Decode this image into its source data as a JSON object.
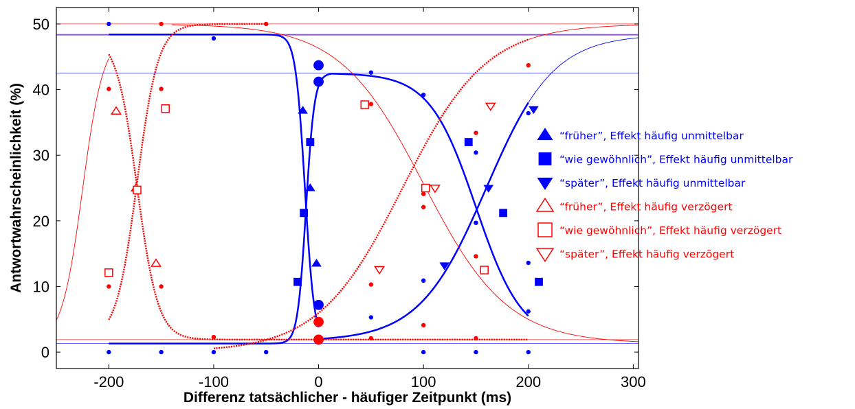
{
  "chart_data": {
    "type": "scatter",
    "title": "",
    "xlabel": "Differenz tatsächlicher - häufiger Zeitpunkt (ms)",
    "ylabel": "Antwortwahrscheinlichkeit (%)",
    "xlim": [
      -250,
      305
    ],
    "ylim": [
      -2.5,
      52.5
    ],
    "xticks": [
      -200,
      -100,
      0,
      100,
      200,
      300
    ],
    "xtick_labels": [
      "-200",
      "-100",
      "0",
      "100",
      "200",
      "300"
    ],
    "yticks": [
      0,
      10,
      20,
      30,
      40,
      50
    ],
    "ytick_labels": [
      "0",
      "10",
      "20",
      "30",
      "40",
      "50"
    ],
    "grid": false,
    "legend_position": "right",
    "colors": {
      "unmittelbar": "#0000ff",
      "verzoegert": "#ff0000"
    },
    "reference_lines": [
      {
        "y": 48.4,
        "color": "#0000ff"
      },
      {
        "y": 42.5,
        "color": "#0000ff"
      },
      {
        "y": 1.3,
        "color": "#0000ff"
      },
      {
        "y": 50.0,
        "color": "#ff0000"
      },
      {
        "y": 48.3,
        "color": "#ff0000"
      },
      {
        "y": 1.9,
        "color": "#ff0000"
      }
    ],
    "curves": [
      {
        "series": "blue_frueher",
        "color": "#0000ff",
        "style": "solid",
        "width": 2.5,
        "low": 1.3,
        "high": 48.4,
        "mid": -13,
        "scale": 4.5,
        "direction": "down",
        "xmin": -200,
        "xmax": 0
      },
      {
        "series": "blue_wie",
        "color": "#0000ff",
        "style": "solid",
        "width": 2.5,
        "low": 1.3,
        "high": 42.5,
        "mid": -12,
        "scale": 4.0,
        "direction": "up",
        "xmin": -200,
        "xmax": 12
      },
      {
        "series": "blue_wie",
        "color": "#0000ff",
        "style": "solid",
        "width": 2.5,
        "low": 1.7,
        "high": 42.5,
        "mid": 150,
        "scale": 22,
        "direction": "down",
        "xmin": 12,
        "xmax": 200
      },
      {
        "series": "blue_spaeter",
        "color": "#0000ff",
        "style": "solid",
        "width": 2.5,
        "low": 1.7,
        "high": 48.4,
        "mid": 160,
        "scale": 32,
        "direction": "up",
        "xmin": 0,
        "xmax": 200
      },
      {
        "series": "blue_spaeter",
        "color": "#0000ff",
        "style": "solid",
        "width": 0.9,
        "low": 1.7,
        "high": 48.4,
        "mid": 160,
        "scale": 32,
        "direction": "up",
        "xmin": 200,
        "xmax": 305
      },
      {
        "series": "red_frueher",
        "color": "#ff0000",
        "style": "dotted",
        "width": 2.5,
        "low": 1.9,
        "high": 48.3,
        "mid": -173,
        "scale": 10,
        "direction": "down",
        "xmin": -200,
        "xmax": 200
      },
      {
        "series": "red_wie",
        "color": "#ff0000",
        "style": "dotted",
        "width": 2.5,
        "low": 1.9,
        "high": 50.0,
        "mid": -173,
        "scale": 10,
        "direction": "up",
        "xmin": -200,
        "xmax": -50
      },
      {
        "series": "red_wie",
        "color": "#ff0000",
        "style": "solid",
        "width": 0.9,
        "low": 1.3,
        "high": 48.3,
        "mid": -225,
        "scale": 10,
        "direction": "up",
        "xmin": -250,
        "xmax": -200
      },
      {
        "series": "red_wie",
        "color": "#ff0000",
        "style": "solid",
        "width": 0.9,
        "low": 1.3,
        "high": 50.0,
        "mid": 100,
        "scale": 40,
        "direction": "down",
        "xmin": -140,
        "xmax": 305
      },
      {
        "series": "red_spaeter",
        "color": "#ff0000",
        "style": "dotted",
        "width": 2.5,
        "low": 0.0,
        "high": 50.0,
        "mid": 80,
        "scale": 40,
        "direction": "up",
        "xmin": -100,
        "xmax": 200
      },
      {
        "series": "red_spaeter",
        "color": "#ff0000",
        "style": "solid",
        "width": 0.9,
        "low": 0.0,
        "high": 50.0,
        "mid": 80,
        "scale": 40,
        "direction": "up",
        "xmin": 200,
        "xmax": 305
      }
    ],
    "series": [
      {
        "key": "blue_frueher",
        "name": "“früher”,  Effekt häufig unmittelbar",
        "color": "#0000ff",
        "marker": "triangle-up",
        "filled": true,
        "points": [
          [
            -15,
            36.8
          ],
          [
            -8,
            25.0
          ],
          [
            -2,
            13.5
          ]
        ]
      },
      {
        "key": "blue_wie",
        "name": "“wie gewöhnlich”, Effekt häufig unmittelbar",
        "color": "#0000ff",
        "marker": "square",
        "filled": true,
        "points": [
          [
            -20,
            10.7
          ],
          [
            -14,
            21.2
          ],
          [
            -8,
            32.0
          ],
          [
            143,
            32.0
          ],
          [
            176,
            21.2
          ],
          [
            210,
            10.7
          ]
        ]
      },
      {
        "key": "blue_spaeter",
        "name": "“später”, Effekt häufig unmittelbar",
        "color": "#0000ff",
        "marker": "triangle-down",
        "filled": true,
        "points": [
          [
            120,
            13.2
          ],
          [
            162,
            25.0
          ],
          [
            205,
            37.0
          ]
        ]
      },
      {
        "key": "red_frueher",
        "name": "“früher”,  Effekt häufig verzögert",
        "color": "#ff0000",
        "marker": "triangle-up",
        "filled": false,
        "points": [
          [
            -193,
            36.7
          ],
          [
            -174,
            25.0
          ],
          [
            -155,
            13.5
          ]
        ]
      },
      {
        "key": "red_wie",
        "name": "“wie gewöhnlich”, Effekt häufig verzögert",
        "color": "#ff0000",
        "marker": "square",
        "filled": false,
        "points": [
          [
            -200,
            12.1
          ],
          [
            -173,
            24.7
          ],
          [
            -146,
            37.1
          ],
          [
            44,
            37.7
          ],
          [
            102,
            25.0
          ],
          [
            158,
            12.5
          ]
        ]
      },
      {
        "key": "red_spaeter",
        "name": "“später”, Effekt häufig verzögert",
        "color": "#ff0000",
        "marker": "triangle-down",
        "filled": false,
        "points": [
          [
            58,
            12.6
          ],
          [
            111,
            25.0
          ],
          [
            164,
            37.5
          ]
        ]
      },
      {
        "key": "blue_center",
        "name": "",
        "color": "#0000ff",
        "marker": "circle",
        "filled": true,
        "points": [
          [
            0,
            43.7
          ],
          [
            0,
            41.2
          ],
          [
            0,
            7.2
          ]
        ]
      },
      {
        "key": "red_center",
        "name": "",
        "color": "#ff0000",
        "marker": "circle",
        "filled": true,
        "points": [
          [
            0,
            4.6
          ],
          [
            0,
            1.9
          ]
        ]
      }
    ],
    "raw_points": [
      {
        "color": "#0000ff",
        "points": [
          [
            -200,
            50.0
          ],
          [
            -200,
            0.0
          ],
          [
            -150,
            0.0
          ],
          [
            -100,
            47.8
          ],
          [
            -100,
            0.0
          ],
          [
            -50,
            0.0
          ],
          [
            50,
            42.6
          ],
          [
            50,
            5.3
          ],
          [
            100,
            39.2
          ],
          [
            100,
            10.9
          ],
          [
            100,
            0.0
          ],
          [
            150,
            30.4
          ],
          [
            150,
            19.7
          ],
          [
            150,
            0.0
          ],
          [
            200,
            36.4
          ],
          [
            200,
            13.6
          ],
          [
            200,
            6.2
          ],
          [
            200,
            0.0
          ]
        ]
      },
      {
        "color": "#ff0000",
        "points": [
          [
            -200,
            40.1
          ],
          [
            -200,
            10.0
          ],
          [
            -150,
            50.0
          ],
          [
            -150,
            40.1
          ],
          [
            -150,
            10.0
          ],
          [
            -100,
            2.3
          ],
          [
            -50,
            50.0
          ],
          [
            50,
            37.8
          ],
          [
            50,
            10.3
          ],
          [
            50,
            2.1
          ],
          [
            100,
            24.1
          ],
          [
            100,
            22.1
          ],
          [
            100,
            4.1
          ],
          [
            150,
            33.4
          ],
          [
            150,
            14.6
          ],
          [
            150,
            2.1
          ],
          [
            200,
            43.7
          ]
        ]
      }
    ]
  }
}
